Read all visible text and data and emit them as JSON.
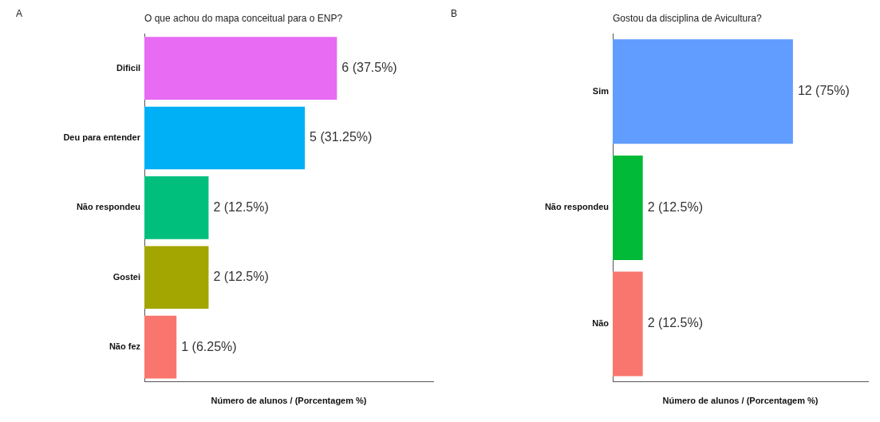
{
  "chart_data": [
    {
      "type": "bar",
      "orientation": "horizontal",
      "title": "O que achou do mapa conceitual para o ENP?",
      "xlabel": "Número de alunos / (Porcentagem %)",
      "annotations": [
        "A"
      ],
      "categories": [
        "Dificil",
        "Deu para entender",
        "Não respondeu",
        "Gostei",
        "Não fez"
      ],
      "values": [
        6,
        5,
        2,
        2,
        1
      ],
      "colors": [
        "#e76bf3",
        "#00b0f6",
        "#00bf7d",
        "#a3a500",
        "#f8766d"
      ],
      "value_labels": [
        "6 (37.5%)",
        "5 (31.25%)",
        "2 (12.5%)",
        "2 (12.5%)",
        "1 (6.25%)"
      ],
      "xlim": [
        0,
        9
      ],
      "tick_labels": "y",
      "grid": false,
      "legend": false
    },
    {
      "type": "bar",
      "orientation": "horizontal",
      "title": "Gostou da disciplina de Avicultura?",
      "xlabel": "Número de alunos / (Porcentagem %)",
      "annotations": [
        "B"
      ],
      "categories": [
        "Sim",
        "Não respondeu",
        "Não"
      ],
      "values": [
        12,
        2,
        2
      ],
      "colors": [
        "#619cff",
        "#00ba38",
        "#f8766d"
      ],
      "value_labels": [
        "12 (75%)",
        "2 (12.5%)",
        "2 (12.5%)"
      ],
      "xlim": [
        0,
        17
      ],
      "tick_labels": "y",
      "grid": false,
      "legend": false
    }
  ]
}
